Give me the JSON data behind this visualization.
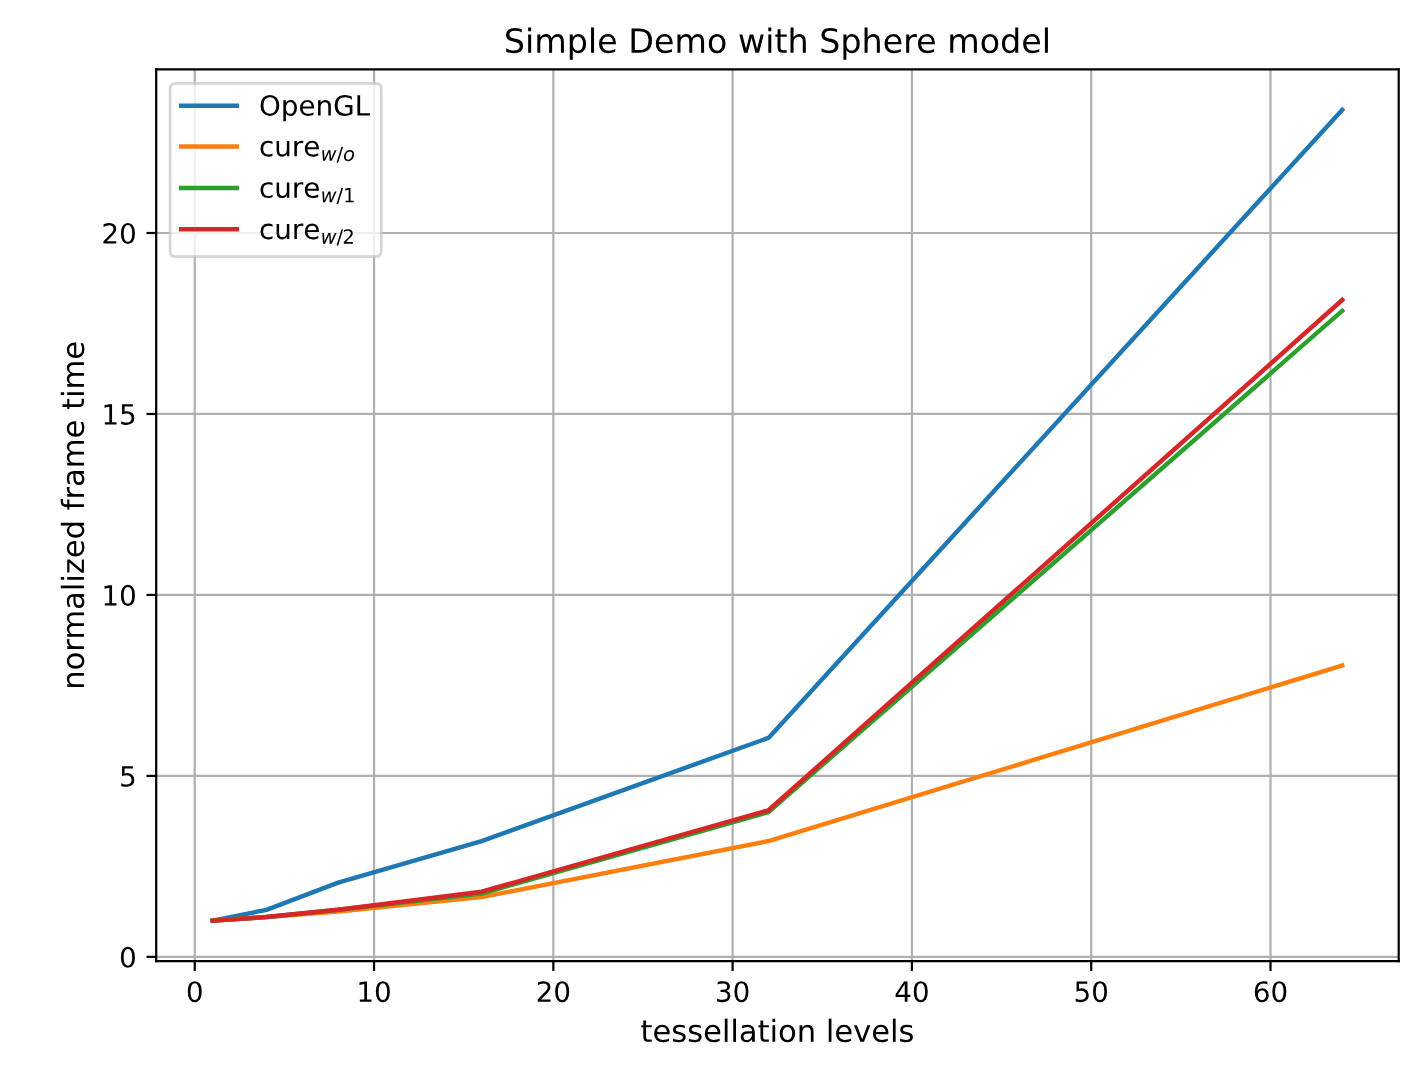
{
  "chart_data": {
    "type": "line",
    "title": "Simple Demo with Sphere model",
    "xlabel": "tessellation levels",
    "ylabel": "normalized frame time",
    "x": [
      1,
      4,
      8,
      16,
      32,
      64
    ],
    "series": [
      {
        "name": "OpenGL",
        "color": "#1f77b4",
        "values": [
          1.0,
          1.3,
          2.05,
          3.2,
          6.05,
          23.4
        ]
      },
      {
        "name": "cure$_{w/o}$",
        "color": "#ff7f0e",
        "values": [
          1.0,
          1.1,
          1.25,
          1.65,
          3.2,
          8.05
        ]
      },
      {
        "name": "cure$_{w/1}$",
        "color": "#2ca02c",
        "values": [
          1.0,
          1.1,
          1.3,
          1.75,
          4.0,
          17.85
        ]
      },
      {
        "name": "cure$_{w/2}$",
        "color": "#d62728",
        "values": [
          1.0,
          1.1,
          1.3,
          1.8,
          4.05,
          18.15
        ]
      }
    ],
    "xlim": [
      -2.15,
      67.15
    ],
    "ylim": [
      -0.12,
      24.52
    ],
    "xticks": [
      0,
      10,
      20,
      30,
      40,
      50,
      60
    ],
    "yticks": [
      0,
      5,
      10,
      15,
      20
    ],
    "grid": true,
    "legend": "top left",
    "marker": "none",
    "line_style": "solid"
  }
}
